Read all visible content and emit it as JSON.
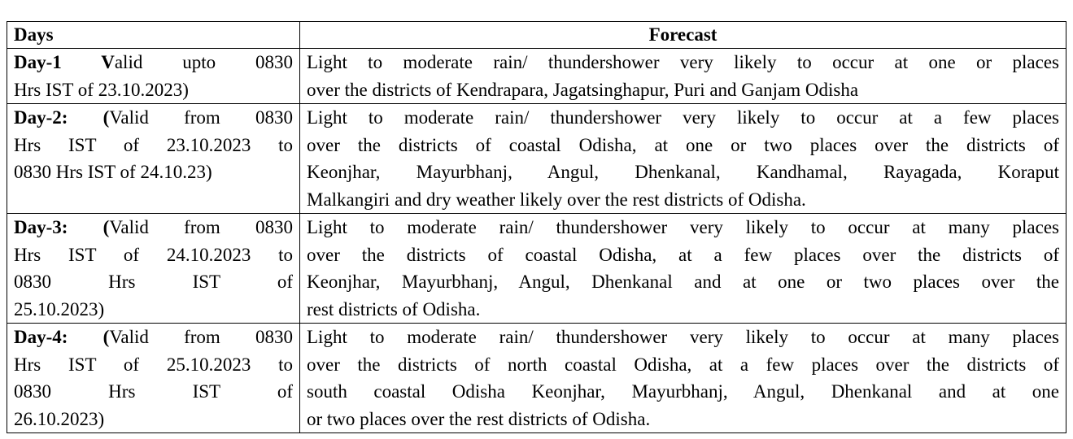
{
  "table": {
    "header": [
      "Days",
      "Forecast"
    ],
    "rows": [
      {
        "days_bold": "Day-1 V",
        "days_lines": [
          "alid upto 0830",
          "Hrs IST of  23.10.2023)"
        ],
        "forecast_lines": [
          "Light to moderate rain/ thundershower very likely to occur at one or places",
          "over the districts of Kendrapara, Jagatsinghapur, Puri and Ganjam Odisha"
        ]
      },
      {
        "days_bold": "Day-2: (",
        "days_lines": [
          "Valid from 0830",
          "Hrs IST of  23.10.2023 to",
          "0830 Hrs IST of 24.10.23)"
        ],
        "forecast_lines": [
          "Light to moderate rain/ thundershower very likely to occur at a few places",
          "over the districts of coastal Odisha,  at one or two places over the districts of",
          "Keonjhar, Mayurbhanj, Angul, Dhenkanal, Kandhamal, Rayagada, Koraput",
          "Malkangiri  and dry weather likely over the rest districts of  Odisha."
        ]
      },
      {
        "days_bold": "Day-3: (",
        "days_lines": [
          "Valid from 0830",
          "Hrs IST of 24.10.2023 to",
          "0830 Hrs IST of",
          "25.10.2023)"
        ],
        "forecast_lines": [
          "Light to moderate rain/ thundershower very likely to occur at many places",
          "over the districts of coastal Odisha, at a few places over the districts of",
          "Keonjhar, Mayurbhanj, Angul, Dhenkanal and at one or two places over the",
          "rest districts of Odisha."
        ]
      },
      {
        "days_bold": "Day-4: (",
        "days_lines": [
          "Valid from 0830",
          "Hrs IST of 25.10.2023 to",
          "0830 Hrs IST of",
          "26.10.2023)"
        ],
        "forecast_lines": [
          "Light to moderate rain/ thundershower very likely to occur at many places",
          "over the districts of north coastal Odisha, at a few places over the districts of",
          "south coastal Odisha Keonjhar, Mayurbhanj, Angul, Dhenkanal and at one",
          "or two places over the rest districts of Odisha."
        ]
      }
    ]
  }
}
